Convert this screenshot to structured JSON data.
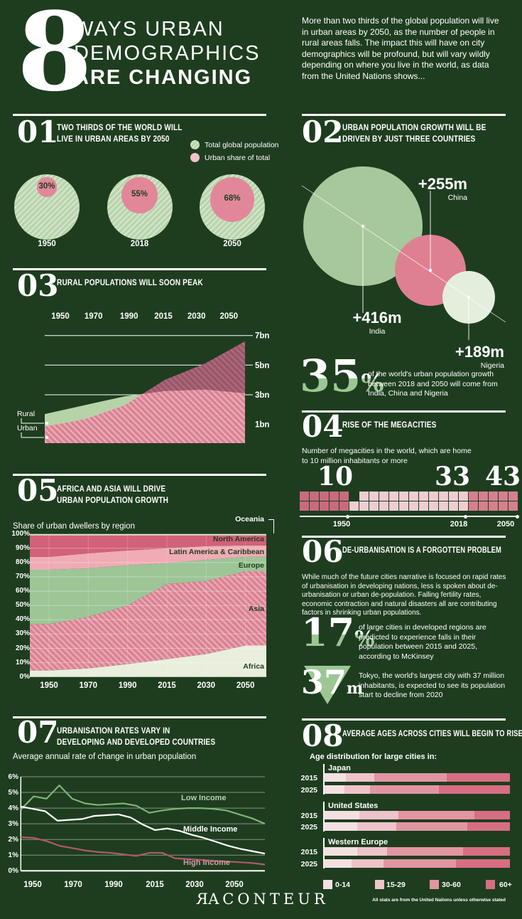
{
  "colors": {
    "background": "#1e3d1f",
    "white": "#ffffff",
    "dark_text": "#1e3d1f",
    "accent_green": "#9cc794",
    "pie_green": "#b9d5ac",
    "pie_pink": "#e2879a",
    "legend_pink": "#f2c3ca",
    "green_bubble": "#a6c89c",
    "pink_bubble": "#df8092",
    "pale_bubble": "#e4eedd",
    "rural": "#b6d3a8",
    "urban": "#db8293",
    "urban_stripe": "#e9b0bb",
    "overlap": "#9a5668",
    "waffle_dark": "#c96b7f",
    "waffle_light": "#eecdd1",
    "waffle_rose": "#d5808f",
    "africa": "#e9efdc",
    "asia": "#db8293",
    "asia_stripe": "#e9adb8",
    "europe": "#9dc596",
    "latam": "#efabb6",
    "north_america": "#d2617a",
    "oceania": "#dfe9d5",
    "green_line": "#7eb475",
    "high_income_line": "#ad5a6b",
    "age_colors": [
      "#f3e1e1",
      "#eec3c9",
      "#e295a2",
      "#d76e83"
    ]
  },
  "header": {
    "number": "8",
    "title_line1": "WAYS URBAN",
    "title_line2": "DEMOGRAPHICS",
    "title_line3": "ARE CHANGING",
    "intro": "More than two thirds of the global population will live in urban areas by 2050, as the number of people in rural areas falls. The impact this will have on city demographics will be profound, but will vary wildly depending on where you live in the world, as data from the United Nations shows..."
  },
  "chart_data": [
    {
      "id": "01",
      "type": "pie",
      "title": "TWO THIRDS OF THE WORLD WILL LIVE IN URBAN AREAS BY 2050",
      "legend": [
        "Total global population",
        "Urban share of total"
      ],
      "categories": [
        "1950",
        "2018",
        "2050"
      ],
      "values": [
        30,
        55,
        68
      ],
      "unit": "% urban share of total population"
    },
    {
      "id": "02",
      "type": "bubble",
      "title": "URBAN POPULATION GROWTH WILL BE DRIVEN BY JUST THREE COUNTRIES",
      "bubbles": [
        {
          "country": "India",
          "label": "+416m",
          "value": 416
        },
        {
          "country": "China",
          "label": "+255m",
          "value": 255
        },
        {
          "country": "Nigeria",
          "label": "+189m",
          "value": 189
        }
      ],
      "stat_value": "35",
      "stat_pct": "%",
      "stat_text": "of the world's urban population growth between 2018 and 2050 will come from India, China and Nigeria"
    },
    {
      "id": "03",
      "type": "area",
      "title": "RURAL POPULATIONS WILL SOON PEAK",
      "x": [
        "1950",
        "1970",
        "1990",
        "2015",
        "2030",
        "2050"
      ],
      "ylim": [
        0,
        7
      ],
      "yticks": [
        "7bn",
        "5bn",
        "3bn",
        "1bn"
      ],
      "series": [
        {
          "name": "Rural",
          "values": [
            1.7,
            2.3,
            2.9,
            3.25,
            3.35,
            3.1
          ]
        },
        {
          "name": "Urban",
          "values": [
            0.85,
            1.35,
            2.3,
            4.0,
            5.1,
            6.6
          ]
        }
      ]
    },
    {
      "id": "04",
      "type": "waffle",
      "title": "RISE OF THE MEGACITIES",
      "subtitle": "Number of megacities in the world, which are home to 10 million inhabitants or more",
      "milestones": [
        {
          "year": "1950",
          "count": "10"
        },
        {
          "year": "2018",
          "count": "33"
        },
        {
          "year": "2050",
          "count": "43"
        }
      ]
    },
    {
      "id": "05",
      "type": "stacked-area",
      "title": "AFRICA AND ASIA WILL DRIVE URBAN POPULATION GROWTH",
      "subtitle": "Share of urban dwellers by region",
      "x": [
        "1950",
        "1970",
        "1990",
        "2015",
        "2030",
        "2050"
      ],
      "yticks": [
        "0%",
        "10%",
        "20%",
        "30%",
        "40%",
        "50%",
        "60%",
        "70%",
        "80%",
        "90%",
        "100%"
      ],
      "series": [
        {
          "name": "Africa",
          "values": [
            4.5,
            6,
            9,
            12.5,
            16,
            22
          ]
        },
        {
          "name": "Asia",
          "values": [
            32.5,
            36,
            41,
            52.5,
            51,
            52
          ]
        },
        {
          "name": "Europe",
          "values": [
            38,
            34,
            28,
            14.5,
            15,
            10
          ]
        },
        {
          "name": "Latin America & Caribbean",
          "values": [
            9,
            10.5,
            10.5,
            10.5,
            9.5,
            8
          ]
        },
        {
          "name": "North America",
          "values": [
            15,
            12.5,
            10.5,
            9,
            7.5,
            7
          ]
        },
        {
          "name": "Oceania",
          "values": [
            1,
            1,
            1,
            1,
            1,
            1
          ]
        }
      ]
    },
    {
      "id": "06",
      "type": "text-stats",
      "title": "DE-URBANISATION IS A FORGOTTEN PROBLEM",
      "body": "While much of the future cities narrative is focused on rapid rates of urbanisation in developing nations, less is spoken about de-urbanisation or urban de-population. Falling fertility rates, economic contraction and natural disasters all are contributing factors in shrinking urban populations.",
      "stats": [
        {
          "value": "17",
          "suffix": "%",
          "text": "of large cities in developed regions are predicted to experience falls in their population between 2015 and 2025, according to McKinsey"
        },
        {
          "value": "37",
          "suffix": "m",
          "text": "Tokyo, the world's largest city with 37 million inhabitants, is expected to see its population start to decline from 2020"
        }
      ]
    },
    {
      "id": "07",
      "type": "line",
      "title": "URBANISATION RATES VARY IN DEVELOPING AND DEVELOPED COUNTRIES",
      "subtitle": "Average annual rate of change in urban population",
      "xticks": [
        "1950",
        "1970",
        "1990",
        "2015",
        "2030",
        "2050"
      ],
      "ylim": [
        0,
        6
      ],
      "yticks": [
        "6%",
        "5%",
        "4%",
        "3%",
        "2%",
        "1%",
        "0%"
      ],
      "series": [
        {
          "name": "Low Income",
          "values": [
            3.9,
            4.75,
            4.6,
            5.45,
            4.6,
            4.3,
            4.2,
            4.25,
            4.3,
            4.15,
            3.7,
            3.85,
            3.95,
            4.0,
            4.0,
            3.95,
            3.85,
            3.6,
            3.35,
            3.0
          ]
        },
        {
          "name": "Middle Income",
          "values": [
            4.1,
            3.95,
            3.8,
            3.2,
            3.25,
            3.3,
            3.5,
            3.55,
            3.6,
            3.4,
            2.95,
            2.6,
            2.7,
            2.55,
            2.3,
            2.1,
            1.85,
            1.6,
            1.4,
            1.25,
            1.1
          ]
        },
        {
          "name": "High Income",
          "values": [
            2.15,
            2.1,
            1.9,
            1.6,
            1.45,
            1.3,
            1.2,
            1.15,
            1.05,
            0.95,
            1.15,
            1.15,
            0.8,
            0.75,
            0.7,
            0.65,
            0.6,
            0.55,
            0.5,
            0.4
          ]
        }
      ]
    },
    {
      "id": "08",
      "type": "stacked-bar",
      "title": "AVERAGE AGES ACROSS CITIES WILL BEGIN TO RISE",
      "subtitle": "Age distribution for large cities in:",
      "age_bands": [
        "0-14",
        "15-29",
        "30-60",
        "60+"
      ],
      "groups": [
        {
          "name": "Japan",
          "rows": [
            {
              "year": "2015",
              "values": [
                12,
                15,
                39,
                34
              ]
            },
            {
              "year": "2025",
              "values": [
                11,
                14,
                37,
                38
              ]
            }
          ]
        },
        {
          "name": "United States",
          "rows": [
            {
              "year": "2015",
              "values": [
                19,
                21,
                41,
                19
              ]
            },
            {
              "year": "2025",
              "values": [
                18,
                21,
                38,
                23
              ]
            }
          ]
        },
        {
          "name": "Western Europe",
          "rows": [
            {
              "year": "2015",
              "values": [
                18,
                16,
                41,
                25
              ]
            },
            {
              "year": "2025",
              "values": [
                15,
                17,
                39,
                29
              ]
            }
          ]
        }
      ]
    }
  ],
  "footer": {
    "logo_first": "R",
    "logo_rest": "ACONTEUR",
    "disclaimer": "All stats are from the United Nations unless otherwise stated"
  }
}
